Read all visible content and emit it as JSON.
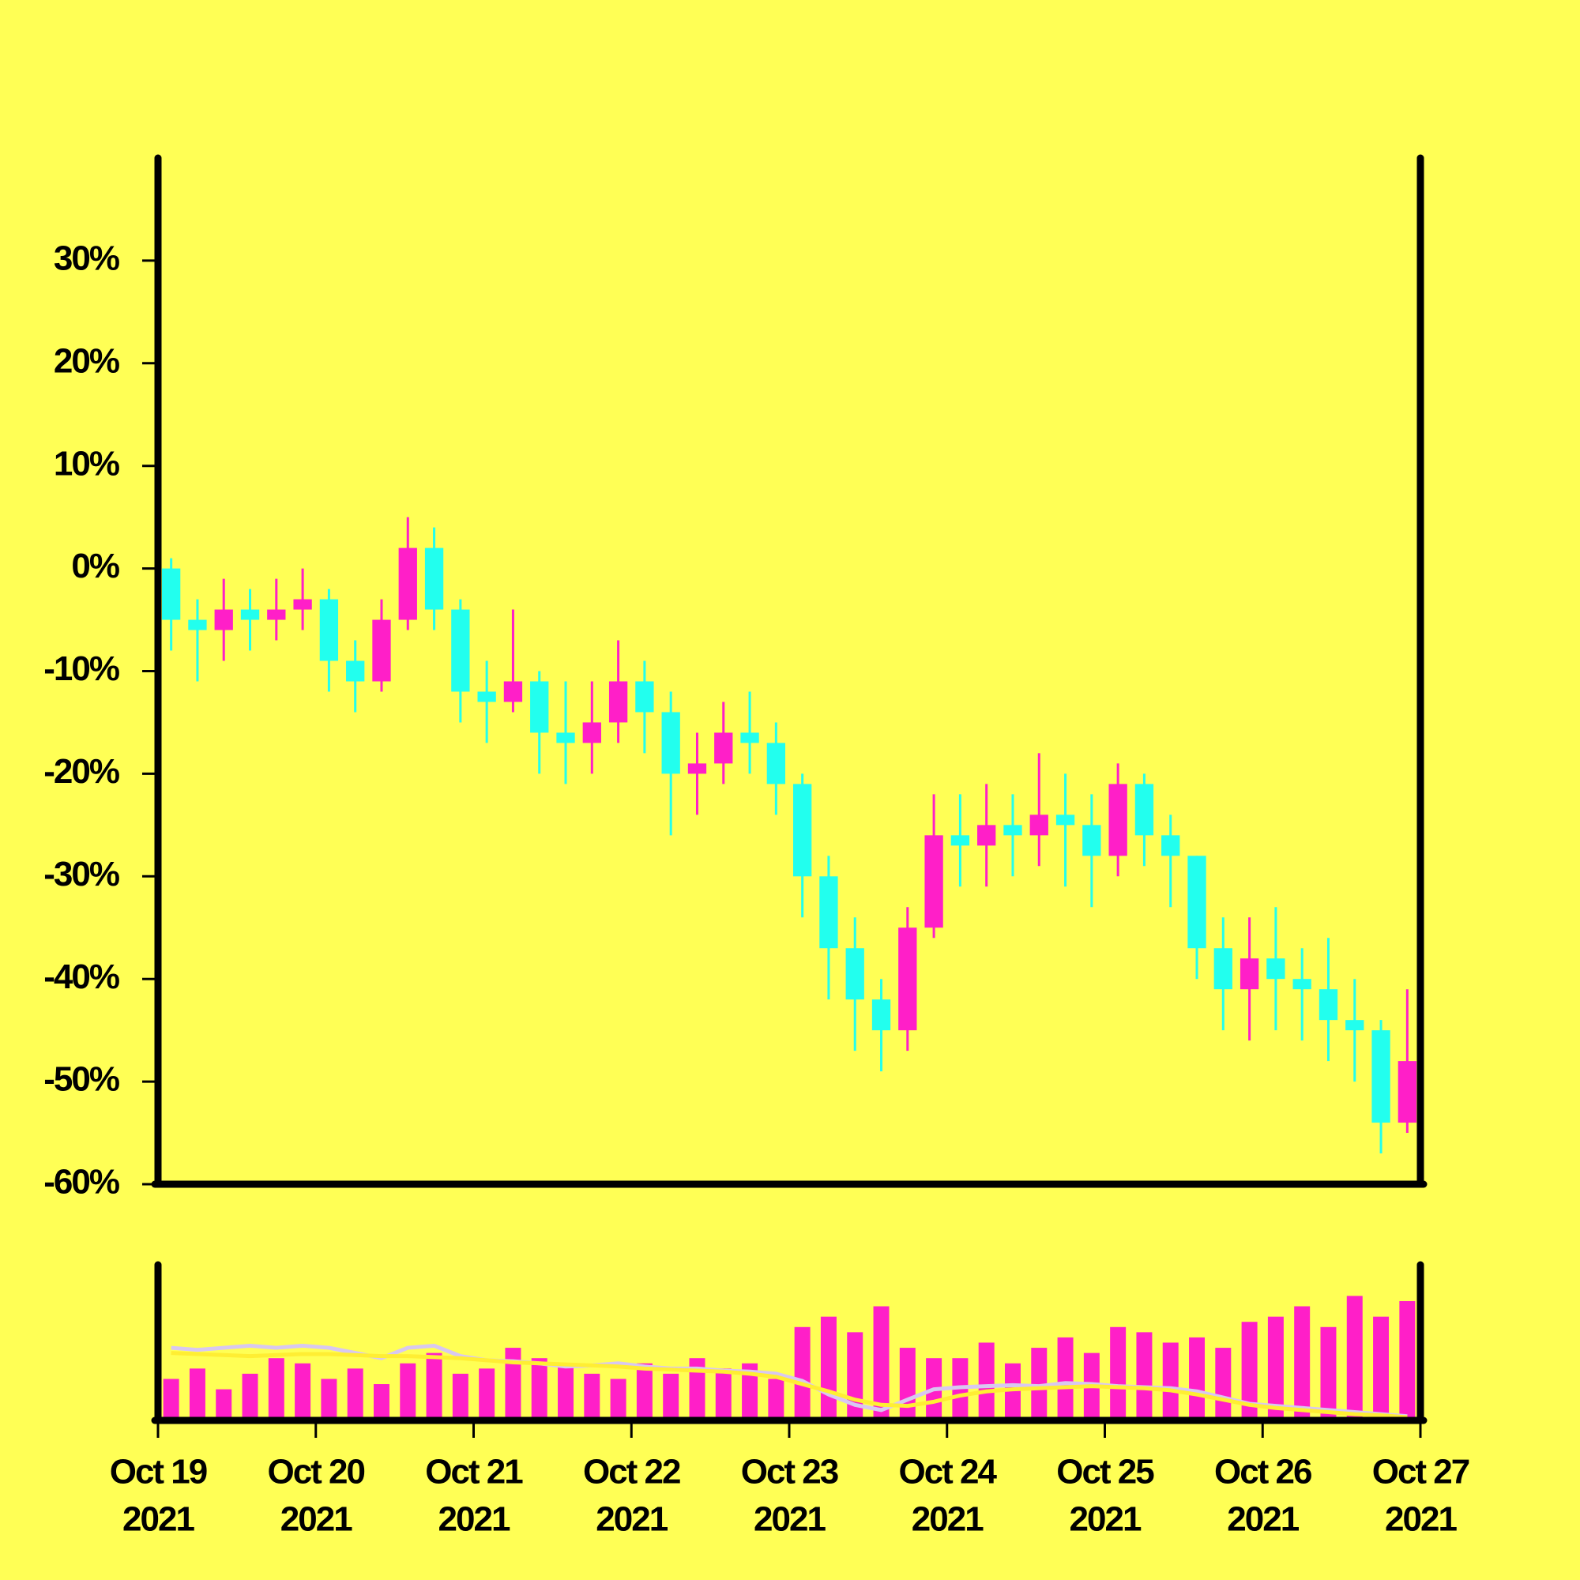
{
  "chart_data": {
    "type": "candlestick",
    "x": [
      "2021-10-19T00:00",
      "2021-10-19T04:00",
      "2021-10-19T08:00",
      "2021-10-19T12:00",
      "2021-10-19T16:00",
      "2021-10-19T20:00",
      "2021-10-20T00:00",
      "2021-10-20T04:00",
      "2021-10-20T08:00",
      "2021-10-20T12:00",
      "2021-10-20T16:00",
      "2021-10-20T20:00",
      "2021-10-21T00:00",
      "2021-10-21T04:00",
      "2021-10-21T08:00",
      "2021-10-21T12:00",
      "2021-10-21T16:00",
      "2021-10-21T20:00",
      "2021-10-22T00:00",
      "2021-10-22T04:00",
      "2021-10-22T08:00",
      "2021-10-22T12:00",
      "2021-10-22T16:00",
      "2021-10-22T20:00",
      "2021-10-23T00:00",
      "2021-10-23T04:00",
      "2021-10-23T08:00",
      "2021-10-23T12:00",
      "2021-10-23T16:00",
      "2021-10-23T20:00",
      "2021-10-24T00:00",
      "2021-10-24T04:00",
      "2021-10-24T08:00",
      "2021-10-24T12:00",
      "2021-10-24T16:00",
      "2021-10-24T20:00",
      "2021-10-25T00:00",
      "2021-10-25T04:00",
      "2021-10-25T08:00",
      "2021-10-25T12:00",
      "2021-10-25T16:00",
      "2021-10-25T20:00",
      "2021-10-26T00:00",
      "2021-10-26T04:00",
      "2021-10-26T08:00",
      "2021-10-26T12:00",
      "2021-10-26T16:00",
      "2021-10-26T20:00"
    ],
    "open": [
      0,
      -5,
      -6,
      -4,
      -5,
      -4,
      -3,
      -9,
      -11,
      -5,
      2,
      -4,
      -12,
      -13,
      -11,
      -16,
      -17,
      -15,
      -11,
      -14,
      -20,
      -19,
      -16,
      -17,
      -21,
      -30,
      -37,
      -42,
      -45,
      -35,
      -26,
      -27,
      -25,
      -26,
      -24,
      -25,
      -28,
      -21,
      -26,
      -28,
      -37,
      -41,
      -38,
      -40,
      -41,
      -44,
      -45,
      -54
    ],
    "high": [
      1,
      -3,
      -1,
      -2,
      -1,
      0,
      -2,
      -7,
      -3,
      5,
      4,
      -3,
      -9,
      -4,
      -10,
      -11,
      -11,
      -7,
      -9,
      -12,
      -16,
      -13,
      -12,
      -15,
      -20,
      -28,
      -34,
      -40,
      -33,
      -22,
      -22,
      -21,
      -22,
      -18,
      -20,
      -22,
      -19,
      -20,
      -24,
      -28,
      -34,
      -34,
      -33,
      -37,
      -36,
      -40,
      -44,
      -41
    ],
    "low": [
      -8,
      -11,
      -9,
      -8,
      -7,
      -6,
      -12,
      -14,
      -12,
      -6,
      -6,
      -15,
      -17,
      -14,
      -20,
      -21,
      -20,
      -17,
      -18,
      -26,
      -24,
      -21,
      -20,
      -24,
      -34,
      -42,
      -47,
      -49,
      -47,
      -36,
      -31,
      -31,
      -30,
      -29,
      -31,
      -33,
      -30,
      -29,
      -33,
      -40,
      -45,
      -46,
      -45,
      -46,
      -48,
      -50,
      -57,
      -55
    ],
    "close": [
      -5,
      -6,
      -4,
      -5,
      -4,
      -3,
      -9,
      -11,
      -5,
      2,
      -4,
      -12,
      -13,
      -11,
      -16,
      -17,
      -15,
      -11,
      -14,
      -20,
      -19,
      -16,
      -17,
      -21,
      -30,
      -37,
      -42,
      -45,
      -35,
      -26,
      -27,
      -25,
      -26,
      -24,
      -25,
      -28,
      -21,
      -26,
      -28,
      -37,
      -41,
      -38,
      -40,
      -41,
      -44,
      -45,
      -54,
      -48
    ],
    "up_color": "#ff1fc8",
    "down_color": "#22ffee",
    "ylim": [
      -60,
      40
    ],
    "yticks": [
      {
        "value": -60,
        "label": "-60%"
      },
      {
        "value": -50,
        "label": "-50%"
      },
      {
        "value": -40,
        "label": "-40%"
      },
      {
        "value": -30,
        "label": "-30%"
      },
      {
        "value": -20,
        "label": "-20%"
      },
      {
        "value": -10,
        "label": "-10%"
      },
      {
        "value": 0,
        "label": "0%"
      },
      {
        "value": 10,
        "label": "10%"
      },
      {
        "value": 20,
        "label": "20%"
      },
      {
        "value": 30,
        "label": "30%"
      }
    ],
    "xlim": [
      "2021-10-19T00:00",
      "2021-10-27T00:00"
    ],
    "xticks": [
      {
        "value": "2021-10-19T00:00",
        "label": [
          "Oct 19",
          "2021"
        ]
      },
      {
        "value": "2021-10-20T00:00",
        "label": [
          "Oct 20",
          "2021"
        ]
      },
      {
        "value": "2021-10-21T00:00",
        "label": [
          "Oct 21",
          "2021"
        ]
      },
      {
        "value": "2021-10-22T00:00",
        "label": [
          "Oct 22",
          "2021"
        ]
      },
      {
        "value": "2021-10-23T00:00",
        "label": [
          "Oct 23",
          "2021"
        ]
      },
      {
        "value": "2021-10-24T00:00",
        "label": [
          "Oct 24",
          "2021"
        ]
      },
      {
        "value": "2021-10-25T00:00",
        "label": [
          "Oct 25",
          "2021"
        ]
      },
      {
        "value": "2021-10-26T00:00",
        "label": [
          "Oct 26",
          "2021"
        ]
      },
      {
        "value": "2021-10-27T00:00",
        "label": [
          "Oct 27",
          "2021"
        ]
      }
    ],
    "volume": {
      "values": [
        40,
        50,
        30,
        45,
        60,
        55,
        40,
        50,
        35,
        55,
        65,
        45,
        50,
        70,
        60,
        55,
        45,
        40,
        55,
        45,
        60,
        50,
        55,
        40,
        90,
        100,
        85,
        110,
        70,
        60,
        60,
        75,
        55,
        70,
        80,
        65,
        90,
        85,
        75,
        80,
        70,
        95,
        100,
        110,
        90,
        120,
        100,
        115
      ],
      "color": "#ff1fc8",
      "ylim": [
        0,
        150
      ],
      "series": [
        {
          "color": "#d8c8f0",
          "values": [
            70,
            68,
            70,
            72,
            70,
            72,
            70,
            65,
            60,
            70,
            72,
            62,
            58,
            57,
            55,
            52,
            53,
            55,
            52,
            50,
            50,
            48,
            47,
            45,
            38,
            25,
            15,
            10,
            20,
            30,
            32,
            33,
            34,
            33,
            36,
            35,
            33,
            32,
            31,
            28,
            22,
            16,
            14,
            12,
            10,
            8,
            6,
            4
          ]
        },
        {
          "color": "#ffee33",
          "values": [
            65,
            64,
            63,
            62,
            63,
            64,
            64,
            63,
            62,
            62,
            61,
            60,
            58,
            56,
            55,
            54,
            53,
            52,
            50,
            49,
            48,
            47,
            45,
            42,
            35,
            28,
            20,
            15,
            14,
            18,
            24,
            28,
            30,
            31,
            32,
            33,
            32,
            31,
            29,
            25,
            20,
            15,
            12,
            10,
            8,
            6,
            5,
            3
          ]
        }
      ]
    }
  }
}
